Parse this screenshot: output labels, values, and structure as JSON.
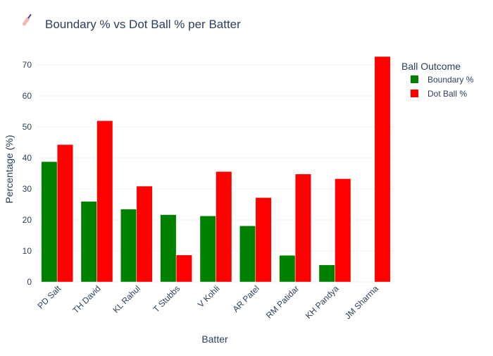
{
  "chart_data": {
    "type": "bar",
    "title": "Boundary % vs Dot Ball % per Batter",
    "title_icon": "cricket-bat-icon",
    "xlabel": "Batter",
    "ylabel": "Percentage (%)",
    "ylim": [
      0,
      75
    ],
    "yticks": [
      0,
      10,
      20,
      30,
      40,
      50,
      60,
      70
    ],
    "grid": true,
    "barmode": "group",
    "legend": {
      "title": "Ball Outcome",
      "placement": "top-right"
    },
    "categories": [
      "PD Salt",
      "TH David",
      "KL Rahul",
      "T Stubbs",
      "V Kohli",
      "AR Patel",
      "RM Patidar",
      "KH Pandya",
      "JM Sharma"
    ],
    "series": [
      {
        "name": "Boundary %",
        "color": "#008000",
        "values": [
          38.8,
          26.0,
          23.5,
          21.7,
          21.3,
          18.1,
          8.6,
          5.5,
          0
        ]
      },
      {
        "name": "Dot Ball %",
        "color": "#ff0000",
        "values": [
          44.3,
          52.0,
          30.9,
          8.7,
          35.6,
          27.2,
          34.8,
          33.3,
          72.7
        ]
      }
    ]
  }
}
